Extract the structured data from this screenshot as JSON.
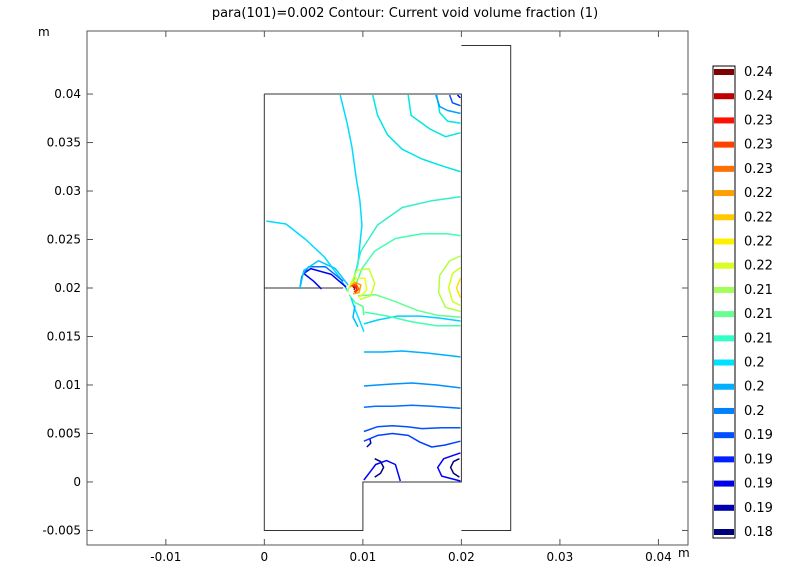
{
  "chart_data": {
    "type": "contour",
    "title": "para(101)=0.002   Contour: Current void volume fraction (1)",
    "x_unit": "m",
    "y_unit": "m",
    "xlim": [
      -0.018,
      0.043
    ],
    "ylim": [
      -0.0065,
      0.0465
    ],
    "x_ticks": [
      {
        "value": -0.01,
        "label": "-0.01"
      },
      {
        "value": 0,
        "label": "0"
      },
      {
        "value": 0.01,
        "label": "0.01"
      },
      {
        "value": 0.02,
        "label": "0.02"
      },
      {
        "value": 0.03,
        "label": "0.03"
      },
      {
        "value": 0.04,
        "label": "0.04"
      }
    ],
    "y_ticks": [
      {
        "value": -0.005,
        "label": "-0.005"
      },
      {
        "value": 0,
        "label": "0"
      },
      {
        "value": 0.005,
        "label": "0.005"
      },
      {
        "value": 0.01,
        "label": "0.01"
      },
      {
        "value": 0.015,
        "label": "0.015"
      },
      {
        "value": 0.02,
        "label": "0.02"
      },
      {
        "value": 0.025,
        "label": "0.025"
      },
      {
        "value": 0.03,
        "label": "0.03"
      },
      {
        "value": 0.035,
        "label": "0.035"
      },
      {
        "value": 0.04,
        "label": "0.04"
      }
    ],
    "grid": false,
    "geometry_outlines": [
      {
        "points": [
          [
            0,
            0.04
          ],
          [
            0.02,
            0.04
          ],
          [
            0.02,
            0
          ],
          [
            0.01,
            0
          ],
          [
            0.01,
            -0.005
          ],
          [
            0,
            -0.005
          ],
          [
            0,
            0.04
          ]
        ]
      },
      {
        "points": [
          [
            0,
            0.02
          ],
          [
            0.008,
            0.02
          ]
        ]
      },
      {
        "points": [
          [
            0.02,
            -0.005
          ],
          [
            0.025,
            -0.005
          ],
          [
            0.025,
            0.045
          ],
          [
            0.02,
            0.045
          ]
        ]
      }
    ],
    "contours": [
      {
        "level": "0.18",
        "color": "#00007f",
        "points": [
          [
            0.0112,
            0.0005
          ],
          [
            0.0118,
            0.0009
          ],
          [
            0.0121,
            0.0015
          ],
          [
            0.0118,
            0.0021
          ],
          [
            0.0112,
            0.0024
          ]
        ]
      },
      {
        "level": "0.18",
        "color": "#00007f",
        "points": [
          [
            0.0198,
            0.0005
          ],
          [
            0.0192,
            0.0009
          ],
          [
            0.0189,
            0.0015
          ],
          [
            0.0192,
            0.0021
          ],
          [
            0.0198,
            0.0024
          ]
        ]
      },
      {
        "level": "0.18",
        "color": "#0000c8",
        "points": [
          [
            0.0104,
            0.0036
          ],
          [
            0.0108,
            0.004
          ],
          [
            0.0107,
            0.0045
          ]
        ]
      },
      {
        "level": "0.19",
        "color": "#0000ff",
        "points": [
          [
            0.0101,
            0.0002
          ],
          [
            0.0107,
            0.001
          ],
          [
            0.0113,
            0.0018
          ],
          [
            0.0124,
            0.0022
          ],
          [
            0.0133,
            0.0018
          ],
          [
            0.0136,
            0.0008
          ],
          [
            0.0138,
            0.0001
          ]
        ]
      },
      {
        "level": "0.19",
        "color": "#0000ff",
        "points": [
          [
            0.0199,
            0.0001
          ],
          [
            0.018,
            0.0006
          ],
          [
            0.0176,
            0.0015
          ],
          [
            0.0182,
            0.0024
          ],
          [
            0.0199,
            0.003
          ]
        ]
      },
      {
        "level": "0.19",
        "color": "#0040ff",
        "points": [
          [
            0.0101,
            0.0042
          ],
          [
            0.0115,
            0.0048
          ],
          [
            0.013,
            0.005
          ],
          [
            0.0146,
            0.0048
          ],
          [
            0.0158,
            0.0041
          ],
          [
            0.017,
            0.0036
          ],
          [
            0.0183,
            0.0038
          ],
          [
            0.0199,
            0.0042
          ]
        ]
      },
      {
        "level": "0.19",
        "color": "#0050ff",
        "points": [
          [
            0.0101,
            0.0052
          ],
          [
            0.0115,
            0.0057
          ],
          [
            0.013,
            0.0058
          ],
          [
            0.0145,
            0.0057
          ],
          [
            0.016,
            0.0055
          ],
          [
            0.018,
            0.0056
          ],
          [
            0.0199,
            0.0056
          ]
        ]
      },
      {
        "level": "0.2",
        "color": "#0070ff",
        "points": [
          [
            0.0101,
            0.0077
          ],
          [
            0.0113,
            0.0078
          ],
          [
            0.013,
            0.0078
          ],
          [
            0.015,
            0.0079
          ],
          [
            0.017,
            0.0078
          ],
          [
            0.0199,
            0.0076
          ]
        ]
      },
      {
        "level": "0.2",
        "color": "#0090ff",
        "points": [
          [
            0.0101,
            0.0099
          ],
          [
            0.0115,
            0.01
          ],
          [
            0.013,
            0.0101
          ],
          [
            0.015,
            0.0102
          ],
          [
            0.0175,
            0.01
          ],
          [
            0.0199,
            0.0097
          ]
        ]
      },
      {
        "level": "0.2",
        "color": "#00b0ff",
        "points": [
          [
            0.0101,
            0.0134
          ],
          [
            0.012,
            0.0134
          ],
          [
            0.014,
            0.0135
          ],
          [
            0.0165,
            0.0133
          ],
          [
            0.0199,
            0.0129
          ]
        ]
      },
      {
        "level": "0.2",
        "color": "#00d0ff",
        "points": [
          [
            0.0101,
            0.0163
          ],
          [
            0.0115,
            0.0167
          ],
          [
            0.0135,
            0.0171
          ],
          [
            0.0158,
            0.0171
          ],
          [
            0.0178,
            0.0169
          ],
          [
            0.0199,
            0.0166
          ]
        ]
      },
      {
        "level": "0.2",
        "color": "#00dcff",
        "points": [
          [
            0.0002,
            0.0269
          ],
          [
            0.0022,
            0.0266
          ],
          [
            0.0042,
            0.025
          ],
          [
            0.0061,
            0.0232
          ],
          [
            0.0077,
            0.021
          ],
          [
            0.0085,
            0.0196
          ]
        ]
      },
      {
        "level": "0.2",
        "color": "#00dcff",
        "points": [
          [
            0.0077,
            0.0399
          ],
          [
            0.0084,
            0.037
          ],
          [
            0.0089,
            0.0345
          ],
          [
            0.0093,
            0.0315
          ],
          [
            0.0097,
            0.029
          ],
          [
            0.0099,
            0.0265
          ],
          [
            0.0095,
            0.0225
          ],
          [
            0.009,
            0.0205
          ]
        ]
      },
      {
        "level": "0.2",
        "color": "#00e6e6",
        "points": [
          [
            0.0199,
            0.032
          ],
          [
            0.018,
            0.0326
          ],
          [
            0.016,
            0.0333
          ],
          [
            0.014,
            0.0343
          ],
          [
            0.0125,
            0.0358
          ],
          [
            0.0115,
            0.0378
          ],
          [
            0.011,
            0.0399
          ]
        ]
      },
      {
        "level": "0.2",
        "color": "#00e6e6",
        "points": [
          [
            0.0175,
            0.0399
          ],
          [
            0.0178,
            0.0381
          ],
          [
            0.0186,
            0.0372
          ],
          [
            0.0199,
            0.037
          ]
        ]
      },
      {
        "level": "0.2",
        "color": "#00e6e6",
        "points": [
          [
            0.0199,
            0.036
          ],
          [
            0.0184,
            0.0356
          ],
          [
            0.0168,
            0.0364
          ],
          [
            0.0149,
            0.0378
          ],
          [
            0.0146,
            0.0399
          ]
        ]
      },
      {
        "level": "0.2",
        "color": "#00a0ff",
        "points": [
          [
            0.0174,
            0.0399
          ],
          [
            0.0178,
            0.0387
          ],
          [
            0.0186,
            0.0383
          ],
          [
            0.0199,
            0.038
          ]
        ]
      },
      {
        "level": "0.19",
        "color": "#0050ff",
        "points": [
          [
            0.0188,
            0.0399
          ],
          [
            0.0191,
            0.0391
          ],
          [
            0.0199,
            0.0388
          ]
        ]
      },
      {
        "level": "0.19",
        "color": "#0000ff",
        "points": [
          [
            0.0196,
            0.0399
          ],
          [
            0.0199,
            0.0396
          ]
        ]
      },
      {
        "level": "0.21",
        "color": "#40ffb0",
        "points": [
          [
            0.0091,
            0.0198
          ],
          [
            0.0099,
            0.022
          ],
          [
            0.0112,
            0.0238
          ],
          [
            0.0133,
            0.0251
          ],
          [
            0.016,
            0.0256
          ],
          [
            0.0185,
            0.0256
          ],
          [
            0.0199,
            0.0254
          ]
        ]
      },
      {
        "level": "0.21",
        "color": "#30f0c8",
        "points": [
          [
            0.0089,
            0.0203
          ],
          [
            0.0098,
            0.0238
          ],
          [
            0.0115,
            0.0265
          ],
          [
            0.014,
            0.0283
          ],
          [
            0.017,
            0.029
          ],
          [
            0.0199,
            0.0294
          ]
        ]
      },
      {
        "level": "0.21",
        "color": "#60ff90",
        "points": [
          [
            0.0095,
            0.0192
          ],
          [
            0.0113,
            0.0193
          ],
          [
            0.0133,
            0.0186
          ],
          [
            0.0155,
            0.0177
          ],
          [
            0.0175,
            0.0172
          ],
          [
            0.0199,
            0.017
          ]
        ]
      },
      {
        "level": "0.21",
        "color": "#40ffb0",
        "points": [
          [
            0.0102,
            0.0175
          ],
          [
            0.0125,
            0.0171
          ],
          [
            0.015,
            0.0165
          ],
          [
            0.0175,
            0.0161
          ],
          [
            0.0199,
            0.0161
          ]
        ]
      },
      {
        "level": "0.22",
        "color": "#b0ff40",
        "points": [
          [
            0.0199,
            0.0233
          ],
          [
            0.0188,
            0.0228
          ],
          [
            0.0178,
            0.0213
          ],
          [
            0.0177,
            0.0195
          ],
          [
            0.0184,
            0.018
          ],
          [
            0.0199,
            0.0176
          ]
        ]
      },
      {
        "level": "0.22",
        "color": "#d0ff20",
        "points": [
          [
            0.0199,
            0.0221
          ],
          [
            0.0191,
            0.0215
          ],
          [
            0.0187,
            0.02
          ],
          [
            0.0191,
            0.0186
          ],
          [
            0.0199,
            0.0182
          ]
        ]
      },
      {
        "level": "0.22",
        "color": "#ffe000",
        "points": [
          [
            0.0199,
            0.021
          ],
          [
            0.0195,
            0.02
          ],
          [
            0.0199,
            0.019
          ]
        ]
      },
      {
        "level": "0.22",
        "color": "#c8ff30",
        "points": [
          [
            0.0084,
            0.0196
          ],
          [
            0.0094,
            0.0218
          ],
          [
            0.0106,
            0.022
          ],
          [
            0.0112,
            0.0205
          ],
          [
            0.0108,
            0.0192
          ],
          [
            0.0097,
            0.0188
          ]
        ]
      },
      {
        "level": "0.22",
        "color": "#e8ff10",
        "points": [
          [
            0.0086,
            0.02
          ],
          [
            0.0093,
            0.021
          ],
          [
            0.0102,
            0.021
          ],
          [
            0.0104,
            0.0198
          ],
          [
            0.0096,
            0.019
          ]
        ]
      },
      {
        "level": "0.22",
        "color": "#ffa000",
        "points": [
          [
            0.0087,
            0.0201
          ],
          [
            0.0092,
            0.0206
          ],
          [
            0.0098,
            0.0203
          ],
          [
            0.0096,
            0.0195
          ],
          [
            0.009,
            0.0194
          ]
        ]
      },
      {
        "level": "0.23",
        "color": "#ff6000",
        "points": [
          [
            0.0088,
            0.0202
          ],
          [
            0.0093,
            0.0204
          ],
          [
            0.0096,
            0.0199
          ],
          [
            0.0092,
            0.0195
          ]
        ]
      },
      {
        "level": "0.23",
        "color": "#ff2000",
        "points": [
          [
            0.0089,
            0.0202
          ],
          [
            0.0093,
            0.0202
          ],
          [
            0.0094,
            0.0198
          ],
          [
            0.0091,
            0.0196
          ]
        ]
      },
      {
        "level": "0.24",
        "color": "#b00000",
        "points": [
          [
            0.009,
            0.0201
          ],
          [
            0.0092,
            0.02
          ],
          [
            0.0091,
            0.0198
          ]
        ]
      },
      {
        "level": "0.21",
        "color": "#50ff90",
        "points": [
          [
            0.0086,
            0.0193
          ],
          [
            0.0092,
            0.0185
          ],
          [
            0.01,
            0.0181
          ],
          [
            0.0101,
            0.0172
          ]
        ]
      },
      {
        "level": "0.2",
        "color": "#00e0ff",
        "points": [
          [
            0.0088,
            0.019
          ],
          [
            0.0092,
            0.0178
          ],
          [
            0.0098,
            0.0163
          ],
          [
            0.0101,
            0.0155
          ]
        ]
      },
      {
        "level": "0.2",
        "color": "#00b8ff",
        "points": [
          [
            0.0092,
            0.0182
          ],
          [
            0.009,
            0.017
          ],
          [
            0.0095,
            0.016
          ]
        ]
      },
      {
        "level": "0.19",
        "color": "#0000ff",
        "points": [
          [
            0.0058,
            0.0199
          ],
          [
            0.005,
            0.0207
          ],
          [
            0.004,
            0.0215
          ],
          [
            0.0047,
            0.022
          ],
          [
            0.0068,
            0.0214
          ],
          [
            0.0083,
            0.0201
          ]
        ]
      },
      {
        "level": "0.19",
        "color": "#0070ff",
        "points": [
          [
            0.0036,
            0.0199
          ],
          [
            0.0038,
            0.0212
          ],
          [
            0.0045,
            0.0222
          ],
          [
            0.0062,
            0.0222
          ],
          [
            0.008,
            0.0207
          ]
        ]
      },
      {
        "level": "0.2",
        "color": "#00c8ff",
        "points": [
          [
            0.0036,
            0.0199
          ],
          [
            0.004,
            0.0218
          ],
          [
            0.0055,
            0.0228
          ],
          [
            0.0072,
            0.022
          ],
          [
            0.0085,
            0.0203
          ]
        ]
      }
    ],
    "legend": {
      "labels": [
        "0.24",
        "0.24",
        "0.23",
        "0.23",
        "0.23",
        "0.22",
        "0.22",
        "0.22",
        "0.22",
        "0.21",
        "0.21",
        "0.21",
        "0.2",
        "0.2",
        "0.2",
        "0.19",
        "0.19",
        "0.19",
        "0.19",
        "0.18"
      ],
      "colors": [
        "#7f0000",
        "#c00000",
        "#ff1000",
        "#ff4000",
        "#ff7000",
        "#ffa000",
        "#ffc800",
        "#fff000",
        "#d8ff20",
        "#a0ff58",
        "#68ff90",
        "#30ffc8",
        "#00e0ff",
        "#00b0ff",
        "#0080ff",
        "#0050ff",
        "#0020ff",
        "#0000e8",
        "#0000b0",
        "#00007f"
      ]
    }
  }
}
